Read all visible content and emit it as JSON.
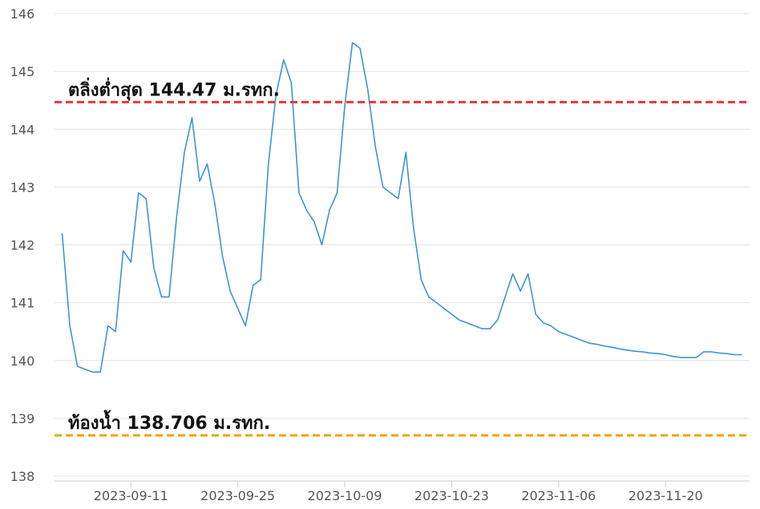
{
  "chart_data": {
    "type": "line",
    "color": "#3d95d3",
    "x": [
      "2023-09-02",
      "2023-09-03",
      "2023-09-04",
      "2023-09-05",
      "2023-09-06",
      "2023-09-07",
      "2023-09-08",
      "2023-09-09",
      "2023-09-10",
      "2023-09-11",
      "2023-09-12",
      "2023-09-13",
      "2023-09-14",
      "2023-09-15",
      "2023-09-16",
      "2023-09-17",
      "2023-09-18",
      "2023-09-19",
      "2023-09-20",
      "2023-09-21",
      "2023-09-22",
      "2023-09-23",
      "2023-09-24",
      "2023-09-25",
      "2023-09-26",
      "2023-09-27",
      "2023-09-28",
      "2023-09-29",
      "2023-09-30",
      "2023-10-01",
      "2023-10-02",
      "2023-10-03",
      "2023-10-04",
      "2023-10-05",
      "2023-10-06",
      "2023-10-07",
      "2023-10-08",
      "2023-10-09",
      "2023-10-10",
      "2023-10-11",
      "2023-10-12",
      "2023-10-13",
      "2023-10-14",
      "2023-10-15",
      "2023-10-16",
      "2023-10-17",
      "2023-10-18",
      "2023-10-19",
      "2023-10-20",
      "2023-10-21",
      "2023-10-22",
      "2023-10-23",
      "2023-10-24",
      "2023-10-25",
      "2023-10-26",
      "2023-10-27",
      "2023-10-28",
      "2023-10-29",
      "2023-10-30",
      "2023-10-31",
      "2023-11-01",
      "2023-11-02",
      "2023-11-03",
      "2023-11-04",
      "2023-11-05",
      "2023-11-06",
      "2023-11-07",
      "2023-11-08",
      "2023-11-09",
      "2023-11-10",
      "2023-11-11",
      "2023-11-12",
      "2023-11-13",
      "2023-11-14",
      "2023-11-15",
      "2023-11-16",
      "2023-11-17",
      "2023-11-18",
      "2023-11-19",
      "2023-11-20",
      "2023-11-21",
      "2023-11-22",
      "2023-11-23",
      "2023-11-24",
      "2023-11-25",
      "2023-11-26",
      "2023-11-27",
      "2023-11-28",
      "2023-11-29",
      "2023-11-30"
    ],
    "values": [
      142.2,
      140.6,
      139.9,
      139.85,
      139.8,
      139.8,
      140.6,
      140.5,
      141.9,
      141.7,
      142.9,
      142.8,
      141.6,
      141.1,
      141.1,
      142.5,
      143.6,
      144.2,
      143.1,
      143.4,
      142.7,
      141.8,
      141.2,
      140.9,
      140.6,
      141.3,
      141.4,
      143.4,
      144.6,
      145.2,
      144.8,
      142.9,
      142.6,
      142.4,
      142.0,
      142.6,
      142.9,
      144.4,
      145.5,
      145.4,
      144.7,
      143.7,
      143.0,
      142.9,
      142.8,
      143.6,
      142.3,
      141.4,
      141.1,
      141.0,
      140.9,
      140.8,
      140.7,
      140.65,
      140.6,
      140.55,
      140.55,
      140.7,
      141.1,
      141.5,
      141.2,
      141.5,
      140.8,
      140.65,
      140.6,
      140.5,
      140.45,
      140.4,
      140.35,
      140.3,
      140.28,
      140.25,
      140.23,
      140.2,
      140.18,
      140.16,
      140.15,
      140.13,
      140.12,
      140.1,
      140.07,
      140.05,
      140.05,
      140.05,
      140.15,
      140.15,
      140.13,
      140.12,
      140.1,
      140.1
    ],
    "xlim": [
      "2023-09-01",
      "2023-12-01"
    ],
    "xticks": [
      "2023-09-11",
      "2023-09-25",
      "2023-10-09",
      "2023-10-23",
      "2023-11-06",
      "2023-11-20"
    ],
    "ylim": [
      138,
      146
    ],
    "yticks": [
      138,
      139,
      140,
      141,
      142,
      143,
      144,
      145,
      146
    ],
    "grid": true,
    "reference_lines": [
      {
        "label": "ตลิ่งต่ำสุด 144.47 ม.รทก.",
        "value": 144.47,
        "color": "#e8353c"
      },
      {
        "label": "ท้องน้ำ 138.706 ม.รทก.",
        "value": 138.706,
        "color": "#f0a30a"
      }
    ]
  }
}
